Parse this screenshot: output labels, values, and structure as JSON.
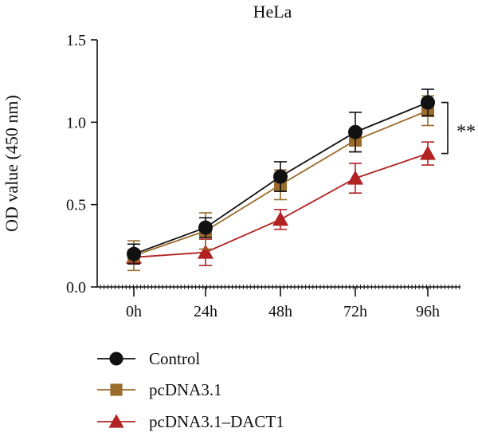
{
  "chart_data": {
    "type": "line",
    "title": "HeLa",
    "xlabel": "",
    "ylabel": "OD value (450 nm)",
    "categories": [
      "0h",
      "24h",
      "48h",
      "72h",
      "96h"
    ],
    "ylim": [
      0,
      1.5
    ],
    "yticks": [
      "0.0",
      "0.5",
      "1.0",
      "1.5"
    ],
    "grid": false,
    "legend_position": "bottom-left",
    "significance_label": "**",
    "series": [
      {
        "name": "Control",
        "marker": "circle",
        "color": "#111111",
        "line_color": "#111111",
        "values": [
          0.2,
          0.36,
          0.67,
          0.94,
          1.12
        ],
        "errors": [
          0.06,
          0.06,
          0.09,
          0.12,
          0.08
        ]
      },
      {
        "name": "pcDNA3.1",
        "marker": "square",
        "color": "#9a6b2a",
        "line_color": "#9a6b2a",
        "values": [
          0.19,
          0.34,
          0.62,
          0.89,
          1.07
        ],
        "errors": [
          0.09,
          0.11,
          0.09,
          0.07,
          0.09
        ]
      },
      {
        "name": "pcDNA3.1–DACT1",
        "marker": "triangle",
        "color": "#b22222",
        "line_color": "#b22222",
        "values": [
          0.18,
          0.21,
          0.41,
          0.66,
          0.81
        ],
        "errors": [
          0.04,
          0.08,
          0.06,
          0.09,
          0.07
        ]
      }
    ]
  }
}
